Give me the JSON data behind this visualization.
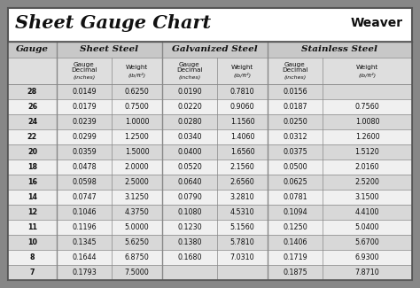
{
  "title": "Sheet Gauge Chart",
  "bg_outer": "#878787",
  "bg_white": "#ffffff",
  "bg_header1": "#c8c8c8",
  "bg_header2": "#dedede",
  "bg_row_dark": "#d8d8d8",
  "bg_row_light": "#f0f0f0",
  "line_color": "#888888",
  "border_color": "#555555",
  "text_dark": "#111111",
  "gauges": [
    28,
    26,
    24,
    22,
    20,
    18,
    16,
    14,
    12,
    11,
    10,
    8,
    7
  ],
  "sheet_steel_decimal": [
    "0.0149",
    "0.0179",
    "0.0239",
    "0.0299",
    "0.0359",
    "0.0478",
    "0.0598",
    "0.0747",
    "0.1046",
    "0.1196",
    "0.1345",
    "0.1644",
    "0.1793"
  ],
  "sheet_steel_weight": [
    "0.6250",
    "0.7500",
    "1.0000",
    "1.2500",
    "1.5000",
    "2.0000",
    "2.5000",
    "3.1250",
    "4.3750",
    "5.0000",
    "5.6250",
    "6.8750",
    "7.5000"
  ],
  "galv_decimal": [
    "0.0190",
    "0.0220",
    "0.0280",
    "0.0340",
    "0.0400",
    "0.0520",
    "0.0640",
    "0.0790",
    "0.1080",
    "0.1230",
    "0.1380",
    "0.1680",
    ""
  ],
  "galv_weight": [
    "0.7810",
    "0.9060",
    "1.1560",
    "1.4060",
    "1.6560",
    "2.1560",
    "2.6560",
    "3.2810",
    "4.5310",
    "5.1560",
    "5.7810",
    "7.0310",
    ""
  ],
  "stainless_decimal": [
    "0.0156",
    "0.0187",
    "0.0250",
    "0.0312",
    "0.0375",
    "0.0500",
    "0.0625",
    "0.0781",
    "0.1094",
    "0.1250",
    "0.1406",
    "0.1719",
    "0.1875"
  ],
  "stainless_weight": [
    "",
    "0.7560",
    "1.0080",
    "1.2600",
    "1.5120",
    "2.0160",
    "2.5200",
    "3.1500",
    "4.4100",
    "5.0400",
    "5.6700",
    "6.9300",
    "7.8710"
  ],
  "fig_w": 4.74,
  "fig_h": 3.25,
  "dpi": 100
}
